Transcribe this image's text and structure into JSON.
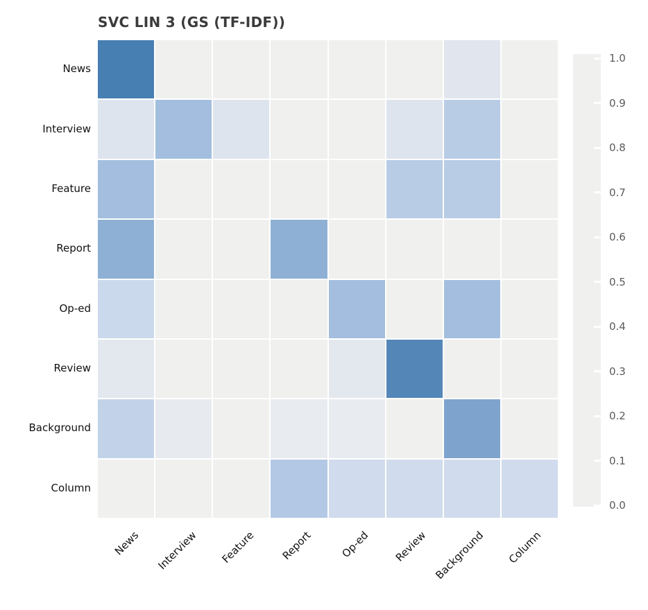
{
  "title": "SVC LIN 3 (GS (TF-IDF))",
  "chart_data": {
    "type": "heatmap",
    "title": "SVC LIN 3 (GS (TF-IDF))",
    "x_categories": [
      "News",
      "Interview",
      "Feature",
      "Report",
      "Op-ed",
      "Review",
      "Background",
      "Column"
    ],
    "y_categories": [
      "News",
      "Interview",
      "Feature",
      "Report",
      "Op-ed",
      "Review",
      "Background",
      "Column"
    ],
    "matrix": [
      [
        0.92,
        0.0,
        0.0,
        0.0,
        0.0,
        0.0,
        0.08,
        0.0
      ],
      [
        0.1,
        0.4,
        0.1,
        0.0,
        0.0,
        0.1,
        0.3,
        0.0
      ],
      [
        0.4,
        0.0,
        0.0,
        0.0,
        0.0,
        0.3,
        0.3,
        0.0
      ],
      [
        0.5,
        0.0,
        0.0,
        0.5,
        0.0,
        0.0,
        0.0,
        0.0
      ],
      [
        0.2,
        0.0,
        0.0,
        0.0,
        0.4,
        0.0,
        0.4,
        0.0
      ],
      [
        0.07,
        0.0,
        0.0,
        0.0,
        0.07,
        0.86,
        0.0,
        0.0
      ],
      [
        0.25,
        0.05,
        0.0,
        0.04,
        0.04,
        0.0,
        0.6,
        0.0
      ],
      [
        0.0,
        0.0,
        0.0,
        0.33,
        0.17,
        0.17,
        0.17,
        0.17
      ]
    ],
    "value_range": [
      0.0,
      1.0
    ],
    "colorbar": {
      "position": "right",
      "tick_labels": [
        "1.0",
        "0.9",
        "0.8",
        "0.7",
        "0.6",
        "0.5",
        "0.4",
        "0.3",
        "0.2",
        "0.1",
        "0.0"
      ],
      "tick_values": [
        1.0,
        0.9,
        0.8,
        0.7,
        0.6,
        0.5,
        0.4,
        0.3,
        0.2,
        0.1,
        0.0
      ]
    },
    "colormap_stops": [
      "#f0f0ef",
      "#dde4ee",
      "#cbd9ec",
      "#b8cce6",
      "#a3bede",
      "#8fb0d5",
      "#7ea4cd",
      "#6e96c3",
      "#5f8cbc",
      "#4d82b5",
      "#3273aa"
    ],
    "grid": false,
    "legend": null,
    "xlabel": "",
    "ylabel": ""
  },
  "style": {
    "background_color": "#ffffff",
    "title_color": "#3b3b3b",
    "axis_label_color": "#111111",
    "colorbar_label_color": "#5a5a5a",
    "cell_gap_color": "#ffffff"
  }
}
